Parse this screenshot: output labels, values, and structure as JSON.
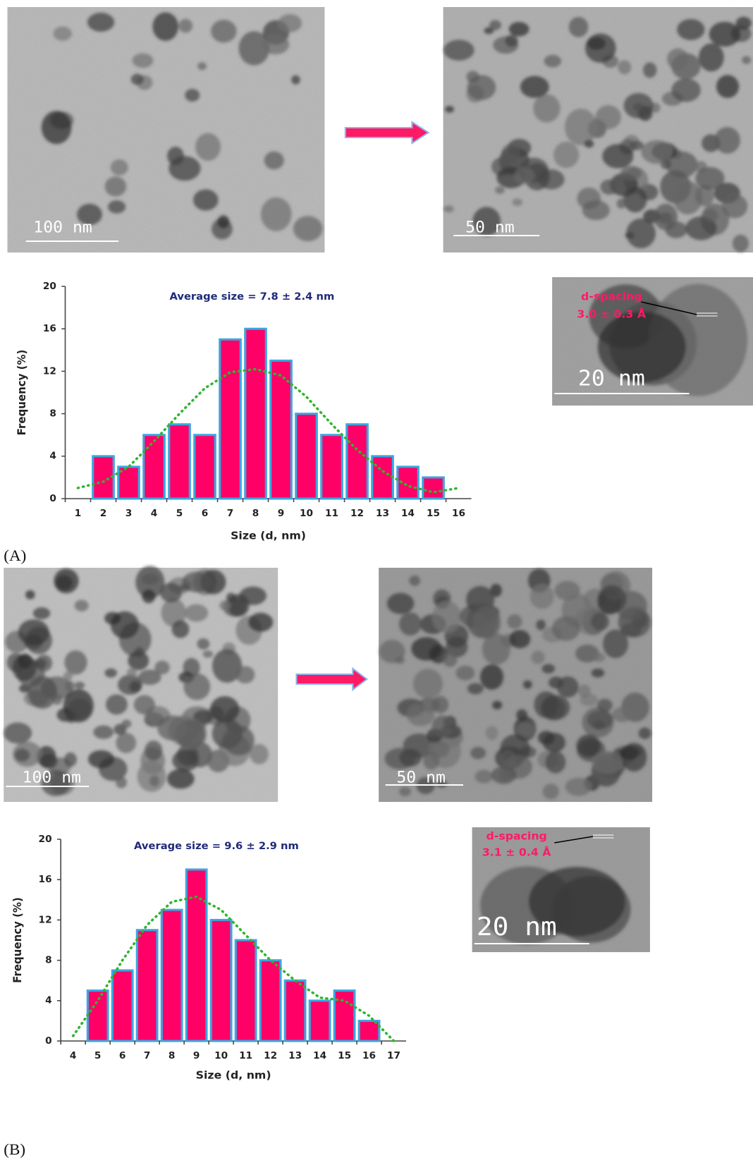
{
  "chart_data": [
    {
      "type": "bar",
      "title": "Average size = 7.8 ± 2.4 nm",
      "x_label": "Size (d, nm)",
      "y_label": "Frequency (%)",
      "x": [
        1,
        2,
        3,
        4,
        5,
        6,
        7,
        8,
        9,
        10,
        11,
        12,
        13,
        14,
        15,
        16
      ],
      "xlim": [
        0.5,
        16.5
      ],
      "xticks": [
        1,
        2,
        3,
        4,
        5,
        6,
        7,
        8,
        9,
        10,
        11,
        12,
        13,
        14,
        15,
        16
      ],
      "ylim": [
        0,
        20
      ],
      "yticks": [
        0,
        4,
        8,
        12,
        16,
        20
      ],
      "series": [
        {
          "color": "#ff0066",
          "edge": "#3ba7e0",
          "values": [
            null,
            4,
            3,
            6,
            7,
            6,
            15,
            16,
            13,
            8,
            6,
            7,
            4,
            3,
            2,
            null
          ]
        },
        {
          "type": "line",
          "style": "dotted",
          "color": "#2fb52f",
          "values": [
            1,
            1.6,
            3,
            5.4,
            8,
            10.4,
            11.9,
            12.2,
            11.6,
            9.6,
            7,
            4.6,
            2.6,
            1.2,
            0.6,
            1
          ]
        }
      ]
    },
    {
      "type": "bar",
      "title": "Average size = 9.6 ± 2.9 nm",
      "x_label": "Size (d, nm)",
      "y_label": "Frequency (%)",
      "x": [
        4,
        5,
        6,
        7,
        8,
        9,
        10,
        11,
        12,
        13,
        14,
        15,
        16,
        17
      ],
      "xlim": [
        3.5,
        17.5
      ],
      "xticks": [
        4,
        5,
        6,
        7,
        8,
        9,
        10,
        11,
        12,
        13,
        14,
        15,
        16,
        17
      ],
      "ylim": [
        0,
        20
      ],
      "yticks": [
        0,
        4,
        8,
        12,
        16,
        20
      ],
      "series": [
        {
          "color": "#ff0066",
          "edge": "#3ba7e0",
          "values": [
            null,
            5,
            7,
            11,
            13,
            17,
            12,
            10,
            8,
            6,
            4,
            5,
            2,
            null
          ]
        },
        {
          "type": "line",
          "style": "dotted",
          "color": "#2fb52f",
          "values": [
            0.5,
            4,
            8,
            11.5,
            13.8,
            14.3,
            13,
            10.5,
            8,
            6,
            4.3,
            4,
            2.5,
            0
          ]
        }
      ]
    }
  ],
  "figure": {
    "panels": [
      {
        "label": "(A)",
        "images": [
          {
            "scale_bar": "100 nm"
          },
          {
            "scale_bar": "50 nm"
          },
          {
            "scale_bar": "20 nm",
            "annotation": [
              "d-spacing",
              "3.0 ± 0.3 Å"
            ]
          }
        ]
      },
      {
        "label": "(B)",
        "images": [
          {
            "scale_bar": "100 nm"
          },
          {
            "scale_bar": "50 nm"
          },
          {
            "scale_bar": "20 nm",
            "annotation": [
              "d-spacing",
              "3.1 ± 0.4 Å"
            ]
          }
        ]
      }
    ]
  }
}
